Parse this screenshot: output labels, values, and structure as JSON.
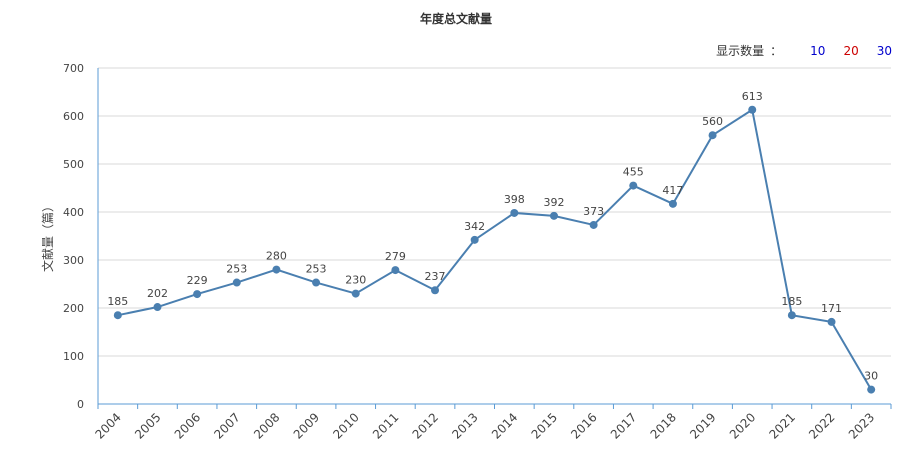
{
  "chart_title": "年度总文献量",
  "count_selector": {
    "label": "显示数量",
    "separator": "：",
    "options": [
      {
        "label": "10",
        "color": "#0000cc"
      },
      {
        "label": "20",
        "color": "#cc0000"
      },
      {
        "label": "30",
        "color": "#0000cc"
      }
    ]
  },
  "colors": {
    "line": "#4a7fb0",
    "axis": "#5b9bd5",
    "grid": "#d9d9d9",
    "text": "#444444"
  },
  "chart_data": {
    "type": "line",
    "title": "年度总文献量",
    "xlabel": "",
    "ylabel": "文献量（篇）",
    "ylim": [
      0,
      700
    ],
    "yticks": [
      0,
      100,
      200,
      300,
      400,
      500,
      600,
      700
    ],
    "grid": true,
    "categories": [
      "2004",
      "2005",
      "2006",
      "2007",
      "2008",
      "2009",
      "2010",
      "2011",
      "2012",
      "2013",
      "2014",
      "2015",
      "2016",
      "2017",
      "2018",
      "2019",
      "2020",
      "2021",
      "2022",
      "2023"
    ],
    "series": [
      {
        "values": [
          185,
          202,
          229,
          253,
          280,
          253,
          230,
          279,
          237,
          342,
          398,
          392,
          373,
          455,
          417,
          560,
          613,
          185,
          171,
          30
        ]
      }
    ]
  }
}
